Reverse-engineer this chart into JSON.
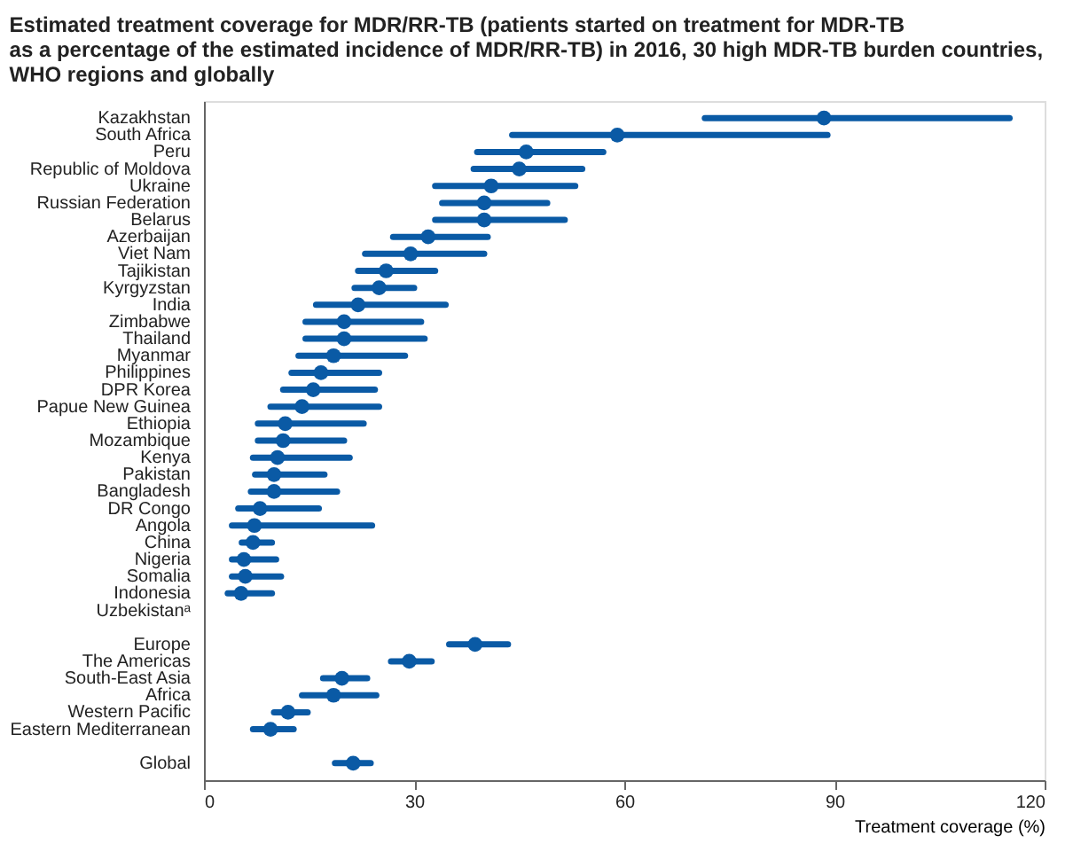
{
  "chart_data": {
    "type": "scatter",
    "title": [
      "Estimated treatment coverage for MDR/RR-TB (patients started on treatment for MDR-TB",
      "as a percentage of the estimated incidence of MDR/RR-TB) in 2016, 30 high MDR-TB burden countries,",
      "WHO regions and globally"
    ],
    "xlabel": "Treatment coverage (%)",
    "orientation": "horizontal",
    "categories": [
      "Kazakhstan",
      "South Africa",
      "Peru",
      "Republic of Moldova",
      "Ukraine",
      "Russian Federation",
      "Belarus",
      "Azerbaijan",
      "Viet Nam",
      "Tajikistan",
      "Kyrgyzstan",
      "India",
      "Zimbabwe",
      "Thailand",
      "Myanmar",
      "Philippines",
      "DPR Korea",
      "Papue New Guinea",
      "Ethiopia",
      "Mozambique",
      "Kenya",
      "Pakistan",
      "Bangladesh",
      "DR Congo",
      "Angola",
      "China",
      "Nigeria",
      "Somalia",
      "Indonesia",
      "Uzbekistanᵃ",
      null,
      "Europe",
      "The Americas",
      "South-East Asia",
      "Africa",
      "Western Pacific",
      "Eastern Mediterranean",
      null,
      "Global"
    ],
    "series": [
      {
        "color": "#0a5aa5",
        "values": [
          88.5,
          59,
          46,
          45,
          41,
          40,
          40,
          32,
          29.5,
          26,
          25,
          22,
          20,
          20,
          18.5,
          16.7,
          15.6,
          14,
          11.6,
          11.3,
          10.5,
          10,
          10,
          8,
          7.2,
          7,
          5.7,
          5.9,
          5.3,
          null,
          null,
          38.7,
          29.3,
          19.7,
          18.5,
          12,
          9.5,
          null,
          21.3
        ],
        "errors": [
          [
            71.5,
            115
          ],
          [
            44,
            89
          ],
          [
            39,
            57
          ],
          [
            38.5,
            54
          ],
          [
            33,
            53
          ],
          [
            34,
            49
          ],
          [
            33,
            51.5
          ],
          [
            27,
            40.5
          ],
          [
            23,
            40
          ],
          [
            22,
            33
          ],
          [
            21.5,
            30
          ],
          [
            16,
            34.5
          ],
          [
            14.5,
            31
          ],
          [
            14.5,
            31.5
          ],
          [
            13.5,
            28.7
          ],
          [
            12.5,
            25
          ],
          [
            11.3,
            24.4
          ],
          [
            9.5,
            25
          ],
          [
            7.7,
            22.8
          ],
          [
            7.7,
            20
          ],
          [
            7,
            20.8
          ],
          [
            7.3,
            17.2
          ],
          [
            6.7,
            19
          ],
          [
            4.9,
            16.4
          ],
          [
            4,
            24
          ],
          [
            5.4,
            9.7
          ],
          [
            4,
            10.3
          ],
          [
            4,
            11
          ],
          [
            3.4,
            9.7
          ],
          null,
          null,
          [
            35,
            43.4
          ],
          [
            26.7,
            32.5
          ],
          [
            17,
            23.3
          ],
          [
            14,
            24.6
          ],
          [
            10,
            14.8
          ],
          [
            7,
            12.8
          ],
          null,
          [
            18.7,
            23.8
          ]
        ]
      }
    ],
    "xlim": [
      0,
      120
    ],
    "xticks": [
      0,
      30,
      60,
      90,
      120
    ],
    "marker": "circle",
    "grid": false
  }
}
